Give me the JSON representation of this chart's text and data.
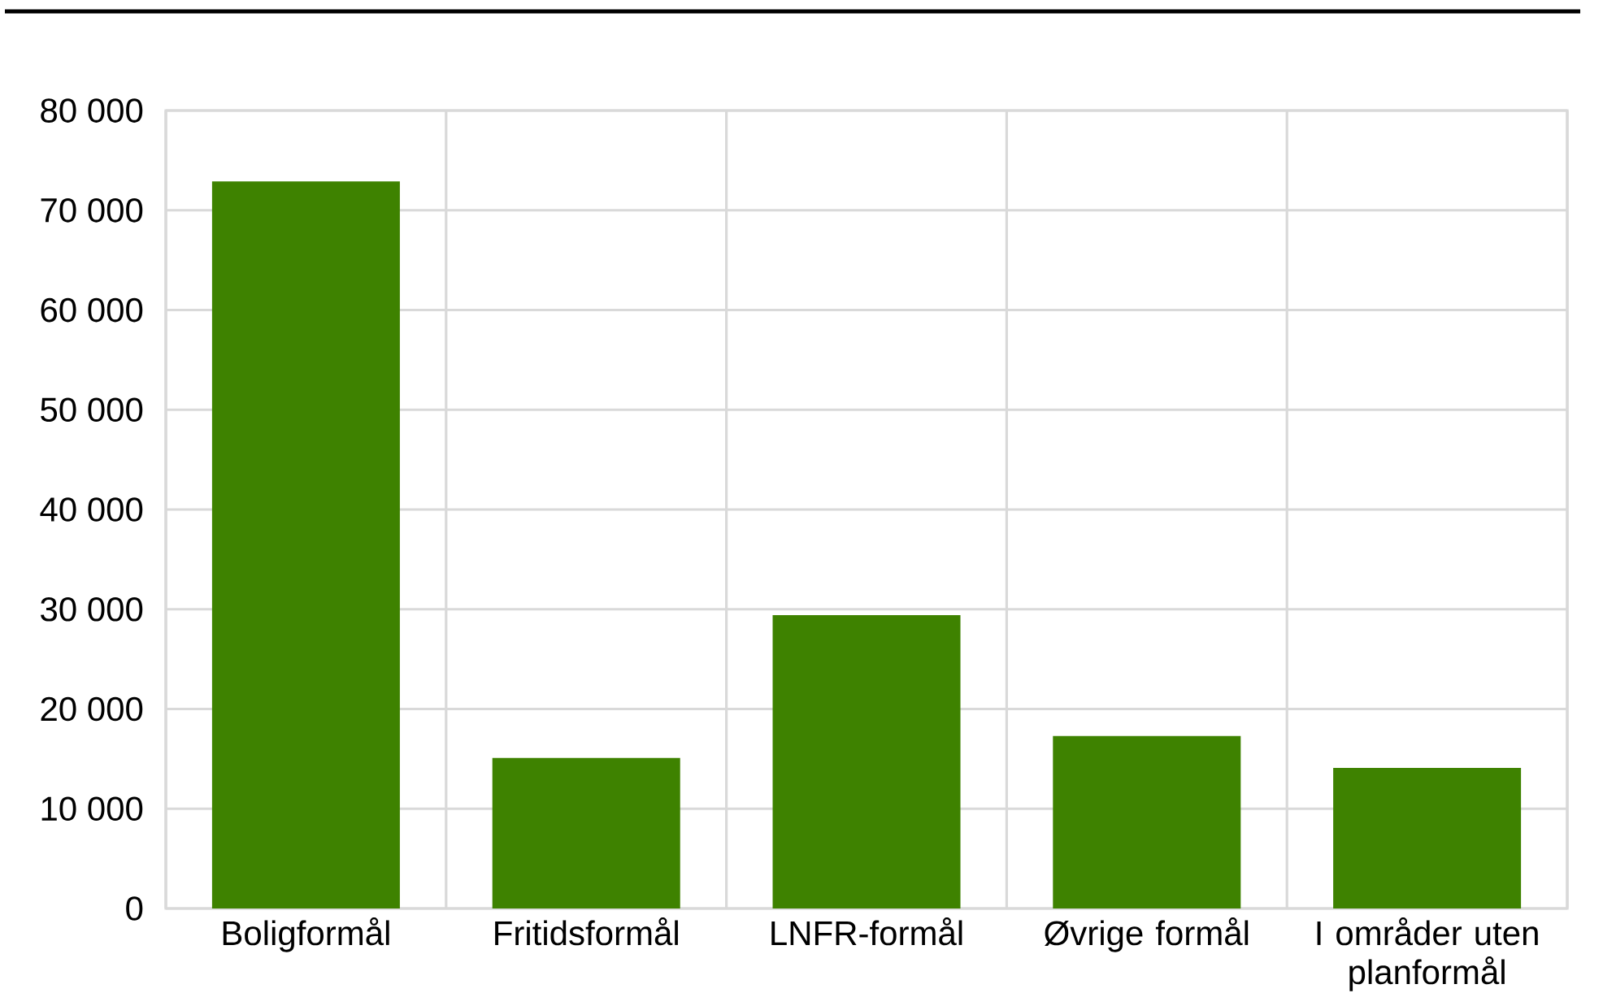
{
  "chart_data": {
    "type": "bar",
    "categories": [
      "Boligformål",
      "Fritidsformål",
      "LNFR-formål",
      "Øvrige formål",
      "I områder uten planformål"
    ],
    "values": [
      72900,
      15100,
      29400,
      17300,
      14100
    ],
    "color": "#3e8200",
    "ylim": [
      0,
      80000
    ],
    "yticks": [
      0,
      {
        "value": 10000,
        "label": "10 000"
      },
      {
        "value": 20000,
        "label": "20 000"
      },
      {
        "value": 30000,
        "label": "30 000"
      },
      {
        "value": 40000,
        "label": "40 000"
      },
      {
        "value": 50000,
        "label": "50 000"
      },
      {
        "value": 60000,
        "label": "60 000"
      },
      {
        "value": 70000,
        "label": "70 000"
      },
      {
        "value": 80000,
        "label": "80 000"
      }
    ],
    "grid": true
  }
}
